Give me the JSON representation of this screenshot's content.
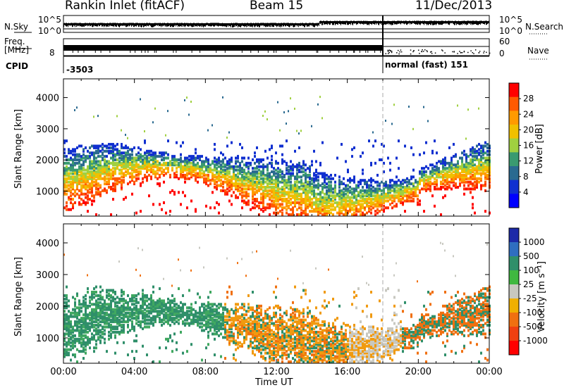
{
  "header": {
    "station": "Rankin Inlet (fitACF)",
    "beam": "Beam 15",
    "date": "11/Dec/2013"
  },
  "status": {
    "nsky_label": "N.Sky",
    "nsearch_label": "N.Search",
    "freq_label_1": "Freq.",
    "freq_label_2": "[MHz]",
    "nave_label": "Nave",
    "cpid_label": "CPID",
    "nsky_ticks": [
      "10^5",
      "10^0"
    ],
    "nsearch_ticks": [
      "10^5",
      "10^0"
    ],
    "freq_ticks": [
      "8"
    ],
    "nave_ticks": [
      "60",
      "0"
    ],
    "cpid_values": [
      "-3503",
      "normal (fast) 151"
    ]
  },
  "chart_data": [
    {
      "type": "heatmap",
      "name": "power",
      "ylabel": "Slant Range [km]",
      "yticks": [
        1000,
        2000,
        3000,
        4000
      ],
      "ylim": [
        200,
        4600
      ],
      "x_ticks": [
        "00:00",
        "04:00",
        "08:00",
        "12:00",
        "16:00",
        "20:00",
        "00:00"
      ],
      "colorbar": {
        "label": "Power [dB]",
        "ticks": [
          "28",
          "24",
          "20",
          "16",
          "12",
          "8",
          "4"
        ],
        "colors": [
          "#ff0000",
          "#ff5a00",
          "#ff9a00",
          "#f0c000",
          "#a0d040",
          "#3a9a70",
          "#2a6a90",
          "#1030d0",
          "#0000ff"
        ]
      }
    },
    {
      "type": "heatmap",
      "name": "velocity",
      "ylabel": "Slant Range [km]",
      "xlabel": "Time UT",
      "yticks": [
        1000,
        2000,
        3000,
        4000
      ],
      "ylim": [
        200,
        4600
      ],
      "x_ticks": [
        "00:00",
        "04:00",
        "08:00",
        "12:00",
        "16:00",
        "20:00",
        "00:00"
      ],
      "colorbar": {
        "label": "Velocity [m s⁻¹]",
        "ticks": [
          "1000",
          "500",
          "100",
          "25",
          "-25",
          "-100",
          "-500",
          "-1000"
        ],
        "colors": [
          "#1c2aa8",
          "#2f6ec0",
          "#2f8f6a",
          "#40b840",
          "#c8c8c0",
          "#f0b000",
          "#f07010",
          "#f04010",
          "#ff0000"
        ]
      }
    }
  ]
}
